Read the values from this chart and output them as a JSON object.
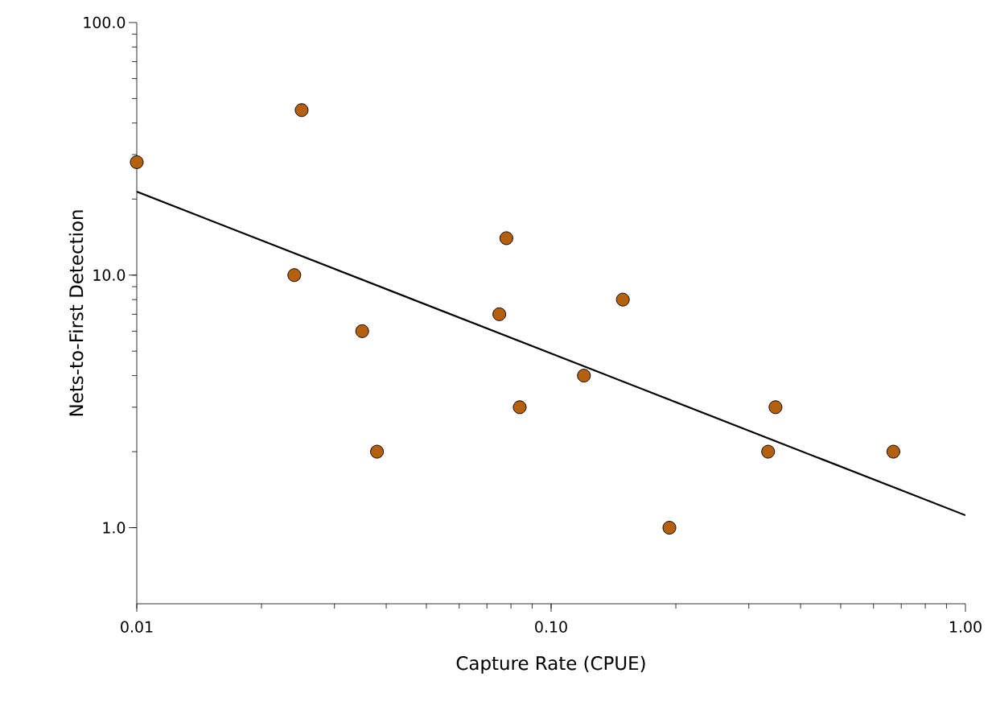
{
  "chart_data": {
    "type": "scatter",
    "xlabel": "Capture Rate (CPUE)",
    "ylabel": "Nets-to-First Detection",
    "log": "xy",
    "grid": false,
    "xlim": [
      0.01,
      1
    ],
    "ylim": [
      0.5,
      100
    ],
    "xticks": [
      {
        "value": 0.01,
        "label": "0.01"
      },
      {
        "value": 0.1,
        "label": "0.10"
      },
      {
        "value": 1,
        "label": "1.00"
      }
    ],
    "yticks": [
      {
        "value": 1,
        "label": "1.0"
      },
      {
        "value": 10,
        "label": "10.0"
      },
      {
        "value": 100,
        "label": "100.0"
      }
    ],
    "series": [
      {
        "color": "#b5600f",
        "marker": "circle",
        "x": [
          0.01,
          0.025,
          0.024,
          0.035,
          0.038,
          0.075,
          0.078,
          0.084,
          0.12,
          0.149,
          0.193,
          0.334,
          0.348,
          0.67
        ],
        "values": [
          28,
          45,
          10,
          6,
          2,
          7,
          14,
          3,
          4,
          8,
          1,
          2,
          3,
          2
        ]
      },
      {
        "type": "line",
        "color": "#000000",
        "marker": "none",
        "line_style": "solid",
        "x": [
          0.01,
          1
        ],
        "values": [
          21.4,
          1.12
        ]
      }
    ]
  }
}
